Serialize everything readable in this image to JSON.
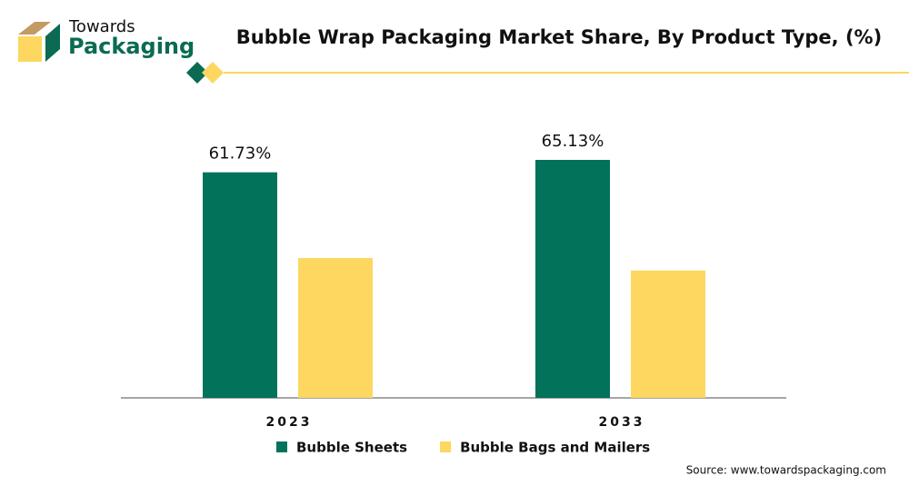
{
  "brand": {
    "line1": "Towards",
    "line2": "Packaging"
  },
  "chart_data": {
    "type": "bar",
    "title": "Bubble Wrap Packaging Market Share, By Product Type, (%)",
    "categories": [
      "2023",
      "2033"
    ],
    "series": [
      {
        "name": "Bubble Sheets",
        "color": "#02725a",
        "values": [
          61.73,
          65.13
        ],
        "value_labels": [
          "61.73%",
          "65.13%"
        ]
      },
      {
        "name": "Bubble Bags and Mailers",
        "color": "#fdd75f",
        "values": [
          38.27,
          34.87
        ]
      }
    ],
    "source": "Source: www.towardspackaging.com"
  }
}
